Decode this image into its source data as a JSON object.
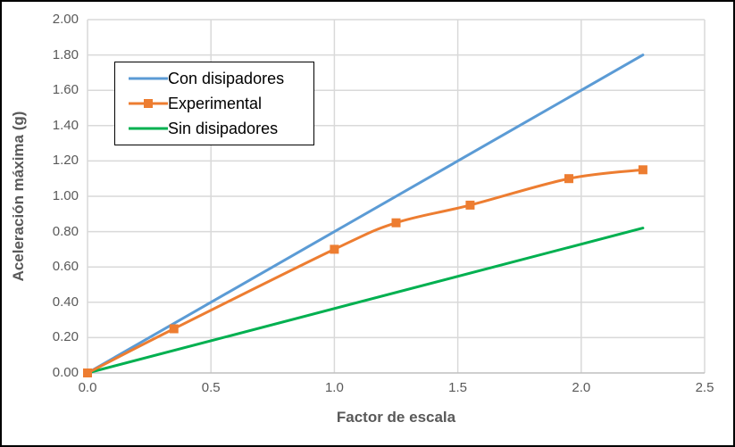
{
  "chart_data": {
    "type": "line",
    "title": "",
    "xlabel": "Factor de escala",
    "ylabel": "Aceleración máxima (g)",
    "xlim": [
      0,
      2.5
    ],
    "ylim": [
      0,
      2.0
    ],
    "grid": true,
    "legend_position": "top-left-inside",
    "x_ticks": [
      {
        "value": 0.0,
        "label": "0.0"
      },
      {
        "value": 0.5,
        "label": "0.5"
      },
      {
        "value": 1.0,
        "label": "1.0"
      },
      {
        "value": 1.5,
        "label": "1.5"
      },
      {
        "value": 2.0,
        "label": "2.0"
      },
      {
        "value": 2.5,
        "label": "2.5"
      }
    ],
    "y_ticks": [
      {
        "value": 0.0,
        "label": "0.00"
      },
      {
        "value": 0.2,
        "label": "0.20"
      },
      {
        "value": 0.4,
        "label": "0.40"
      },
      {
        "value": 0.6,
        "label": "0.60"
      },
      {
        "value": 0.8,
        "label": "0.80"
      },
      {
        "value": 1.0,
        "label": "1.00"
      },
      {
        "value": 1.2,
        "label": "1.20"
      },
      {
        "value": 1.4,
        "label": "1.40"
      },
      {
        "value": 1.6,
        "label": "1.60"
      },
      {
        "value": 1.8,
        "label": "1.80"
      },
      {
        "value": 2.0,
        "label": "2.00"
      }
    ],
    "series": [
      {
        "name": "Con disipadores",
        "color": "#5B9BD5",
        "marker": "none",
        "smooth": false,
        "points": [
          [
            0,
            0
          ],
          [
            2.25,
            1.8
          ]
        ]
      },
      {
        "name": "Experimental",
        "color": "#ED7D31",
        "marker": "square",
        "smooth": true,
        "points": [
          [
            0,
            0
          ],
          [
            0.35,
            0.25
          ],
          [
            1.0,
            0.7
          ],
          [
            1.25,
            0.85
          ],
          [
            1.55,
            0.95
          ],
          [
            1.95,
            1.1
          ],
          [
            2.25,
            1.15
          ]
        ]
      },
      {
        "name": "Sin disipadores",
        "color": "#00B050",
        "marker": "none",
        "smooth": false,
        "points": [
          [
            0,
            0
          ],
          [
            2.25,
            0.82
          ]
        ]
      }
    ],
    "colors": {
      "grid": "#D9D9D9",
      "axis_line": "#BFBFBF",
      "tick_label": "#595959",
      "axis_title": "#595959",
      "legend_text": "#000000",
      "border": "#000000",
      "background": "#FFFFFF"
    }
  }
}
